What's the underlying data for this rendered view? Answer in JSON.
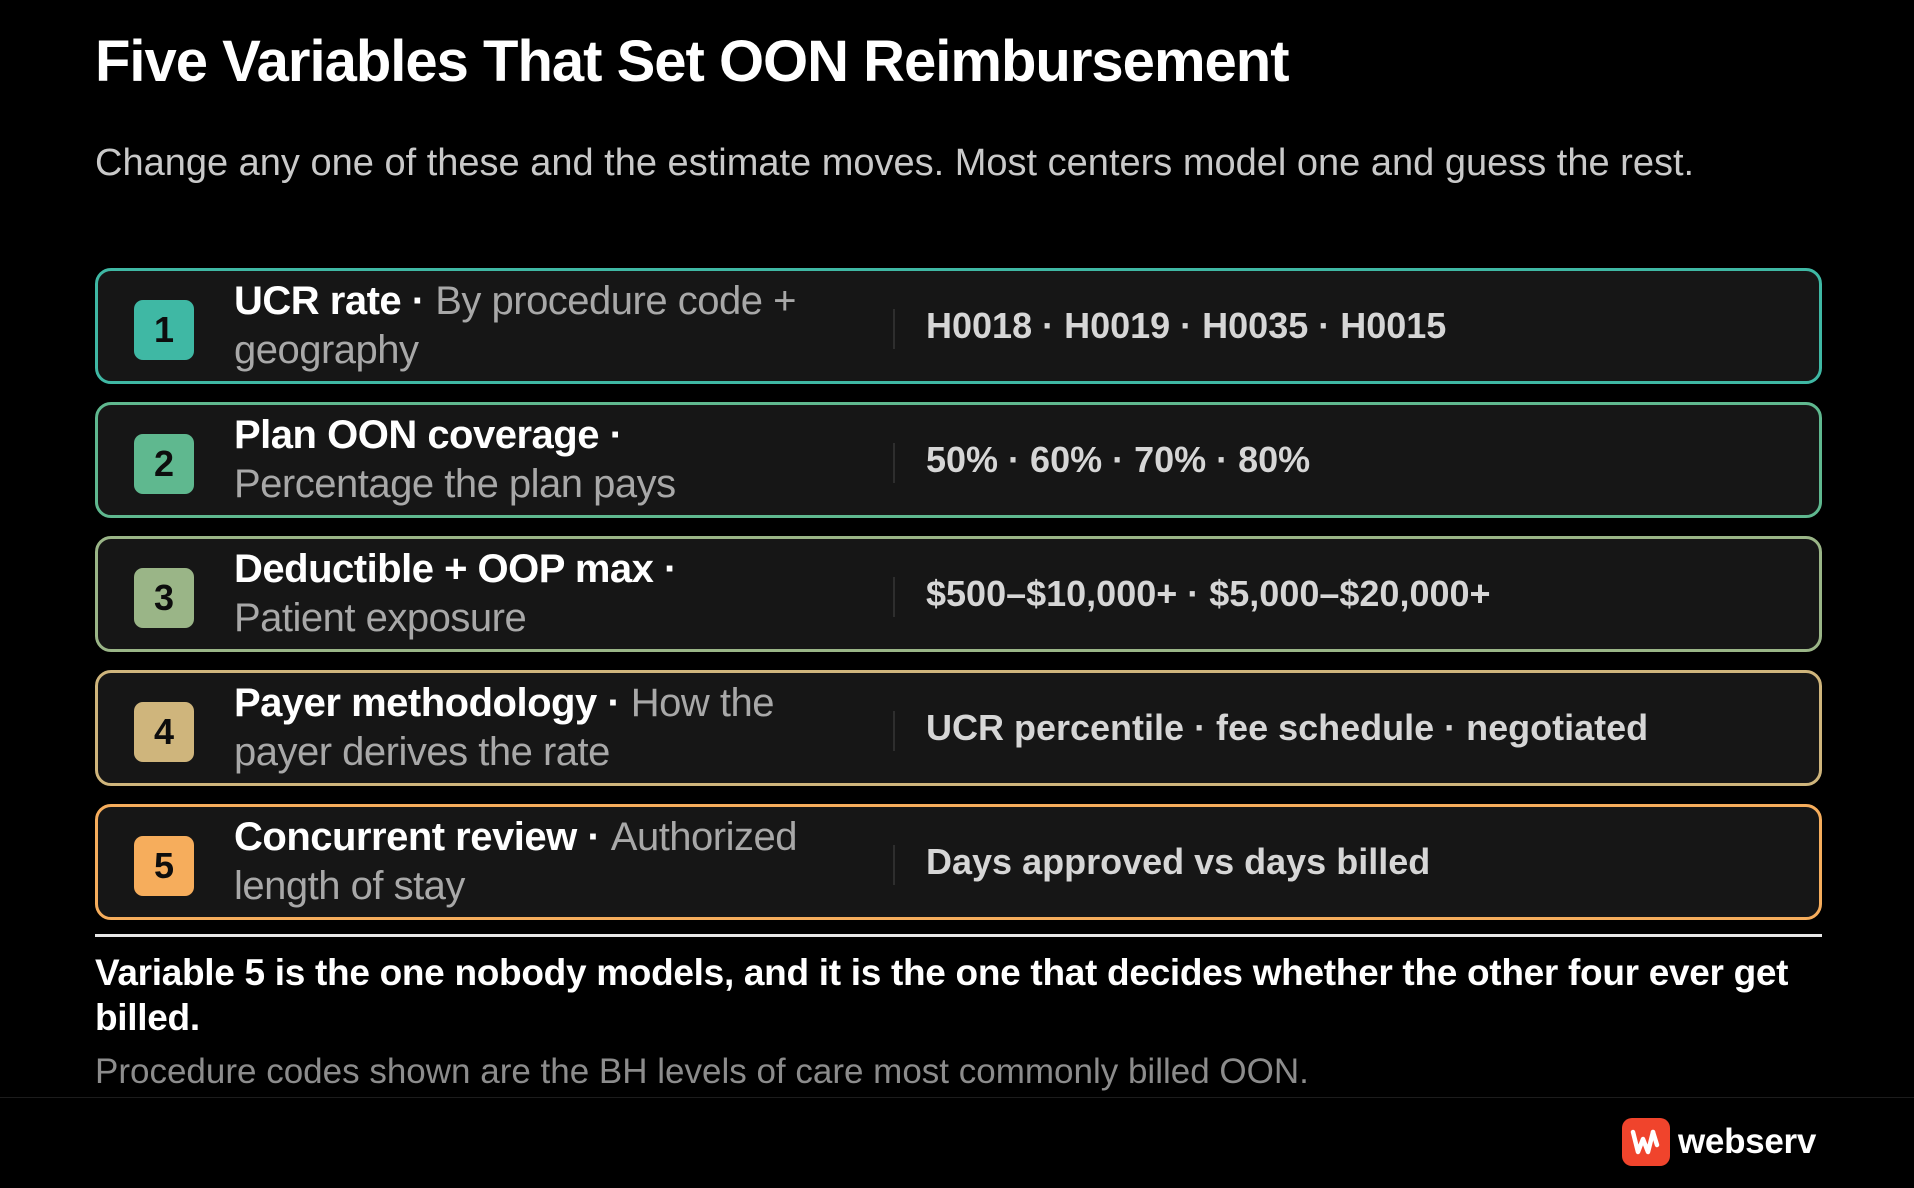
{
  "title": "Five Variables That Set OON Reimbursement",
  "subtitle": "Change any one of these and the estimate moves. Most centers model one and guess the rest.",
  "rows": [
    {
      "number": "1",
      "name": "UCR rate",
      "sep": " · ",
      "desc": "By procedure code + geography",
      "values": "H0018 · H0019 · H0035 · H0015",
      "color": "#3fb8a4"
    },
    {
      "number": "2",
      "name": "Plan OON coverage",
      "sep": " · ",
      "desc": "Percentage the plan pays",
      "values": "50% · 60% · 70% · 80%",
      "color": "#5fb88f"
    },
    {
      "number": "3",
      "name": "Deductible + OOP max",
      "sep": " · ",
      "desc": "Patient exposure",
      "values": "$500–$10,000+ · $5,000–$20,000+",
      "color": "#9ab587"
    },
    {
      "number": "4",
      "name": "Payer methodology",
      "sep": " · ",
      "desc": "How the payer derives the rate",
      "values": "UCR percentile · fee schedule · negotiated",
      "color": "#cfb57c"
    },
    {
      "number": "5",
      "name": "Concurrent review",
      "sep": " · ",
      "desc": "Authorized length of stay",
      "values": "Days approved vs days billed",
      "color": "#f6ad5c"
    }
  ],
  "takeaway": "Variable 5 is the one nobody models, and it is the one that decides whether the other four ever get billed.",
  "footnote": "Procedure codes shown are the BH levels of care most commonly billed OON.",
  "brand": {
    "name": "webserv",
    "logo_icon": "webserv-logo-icon",
    "color": "#f0442c"
  }
}
